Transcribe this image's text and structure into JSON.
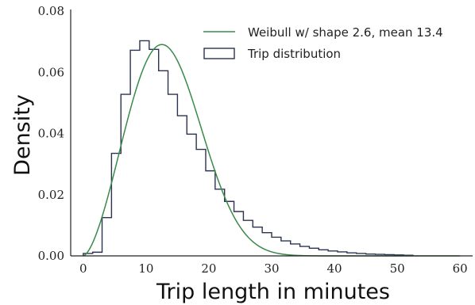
{
  "chart_data": {
    "type": "line",
    "title": "",
    "xlabel": "Trip length in minutes",
    "ylabel": "Density",
    "xlim": [
      -2,
      62
    ],
    "ylim": [
      0,
      0.08
    ],
    "xticks": [
      0,
      10,
      20,
      30,
      40,
      50,
      60
    ],
    "xtick_labels": [
      "0",
      "10",
      "20",
      "30",
      "40",
      "50",
      "60"
    ],
    "yticks": [
      0,
      0.02,
      0.04,
      0.06,
      0.08
    ],
    "ytick_labels": [
      "0.00",
      "0.02",
      "0.04",
      "0.06",
      "0.08"
    ],
    "grid": false,
    "legend_position": "top-right",
    "series": [
      {
        "name": "Weibull w/ shape 2.6, mean 13.4",
        "kind": "curve",
        "color": "#3a8a4a",
        "shape": 2.6,
        "mean": 13.4
      },
      {
        "name": "Trip distribution",
        "kind": "step-histogram",
        "color": "#2b3350",
        "bin_edges": [
          0,
          1.5,
          3,
          4.5,
          6,
          7.5,
          9,
          10.5,
          12,
          13.5,
          15,
          16.5,
          18,
          19.5,
          21,
          22.5,
          24,
          25.5,
          27,
          28.5,
          30,
          31.5,
          33,
          34.5,
          36,
          37.5,
          39,
          40.5,
          42,
          43.5,
          45,
          46.5,
          48,
          49.5,
          51,
          52.5
        ],
        "values": [
          0.0008,
          0.0012,
          0.0125,
          0.0335,
          0.0528,
          0.0672,
          0.0703,
          0.0675,
          0.0605,
          0.0528,
          0.0458,
          0.0398,
          0.0348,
          0.0278,
          0.0218,
          0.0178,
          0.0145,
          0.0116,
          0.0094,
          0.0076,
          0.0061,
          0.0049,
          0.0039,
          0.0031,
          0.0025,
          0.002,
          0.0016,
          0.0013,
          0.001,
          0.0008,
          0.0006,
          0.0005,
          0.0004,
          0.0003,
          0.0002
        ]
      }
    ]
  },
  "colors": {
    "axis": "#222222",
    "weibull": "#3a8a4a",
    "histogram": "#2b3350"
  }
}
